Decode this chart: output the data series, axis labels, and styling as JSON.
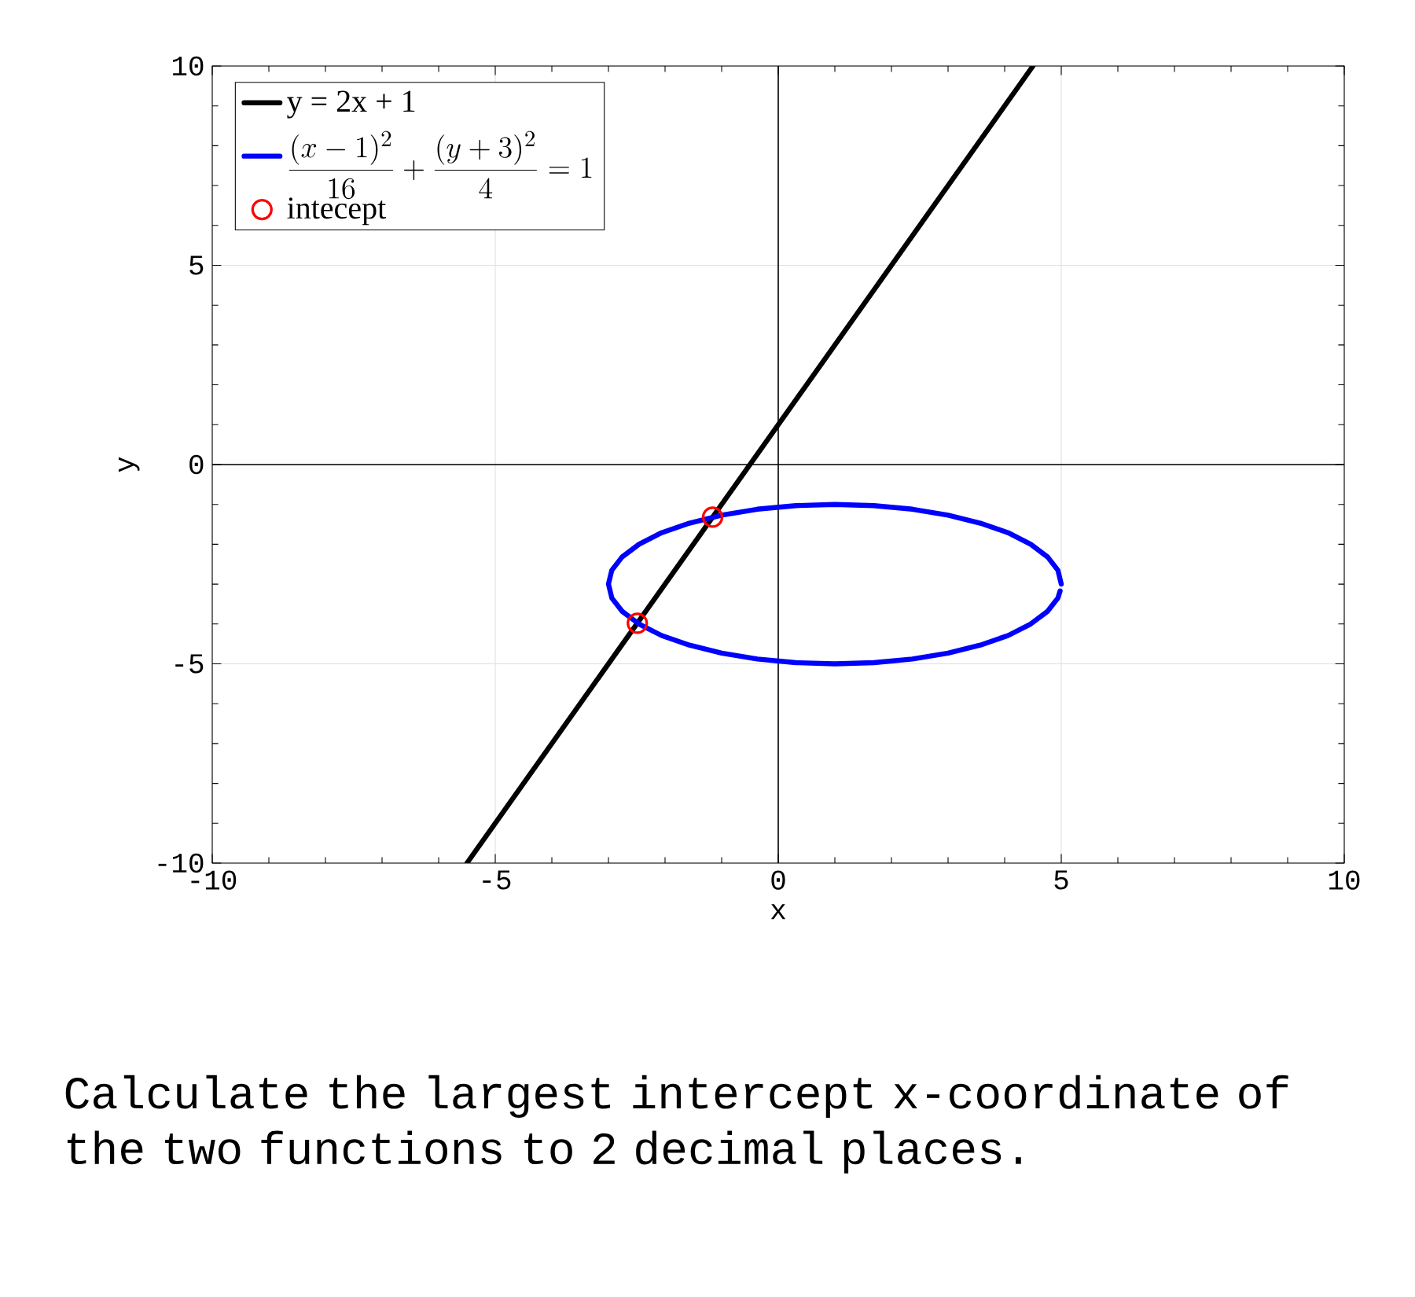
{
  "chart_data": {
    "type": "line",
    "xlabel": "x",
    "ylabel": "y",
    "xlim": [
      -10,
      10
    ],
    "ylim": [
      -10,
      10
    ],
    "xticks": [
      -10,
      -5,
      0,
      5,
      10
    ],
    "yticks": [
      -10,
      -5,
      0,
      5,
      10
    ],
    "grid": true,
    "legend": "top left",
    "series": [
      {
        "name": "y = 2x + 1",
        "color": "#000000",
        "marker": "none",
        "x": [
          -5.5,
          4.5
        ],
        "values": [
          -10,
          10
        ]
      },
      {
        "name": "\\frac{(x-1)^2}{16}+\\frac{(y+3)^2}{4}=1",
        "type": "line",
        "color": "#0000ff",
        "marker": "none",
        "x": [
          5,
          4.94,
          4.76,
          4.46,
          4.06,
          3.57,
          3,
          2.37,
          1.69,
          1,
          0.31,
          -0.37,
          -1,
          -1.57,
          -2.06,
          -2.46,
          -2.76,
          -2.94,
          -3,
          -2.94,
          -2.76,
          -2.46,
          -2.06,
          -1.57,
          -1,
          -0.37,
          0.31,
          1,
          1.69,
          2.37,
          3,
          3.57,
          4.06,
          4.46,
          4.76,
          4.94,
          4.98
        ],
        "values": [
          -3,
          -2.65,
          -2.32,
          -2,
          -1.71,
          -1.47,
          -1.27,
          -1.12,
          -1.03,
          -1,
          -1.03,
          -1.12,
          -1.27,
          -1.47,
          -1.71,
          -2,
          -2.32,
          -2.65,
          -3,
          -3.35,
          -3.68,
          -4,
          -4.29,
          -4.53,
          -4.73,
          -4.88,
          -4.97,
          -5,
          -4.97,
          -4.88,
          -4.73,
          -4.53,
          -4.29,
          -4,
          -3.68,
          -3.35,
          -3.17
        ]
      },
      {
        "name": "intecept",
        "type": "scatter",
        "color": "#ff0000",
        "marker": "circle",
        "x": [
          -1.16,
          -2.49
        ],
        "values": [
          -1.32,
          -3.98
        ]
      }
    ],
    "annotations": [
      "Calculate the largest intercept x-coordinate of the two functions to 2 decimal places."
    ]
  }
}
